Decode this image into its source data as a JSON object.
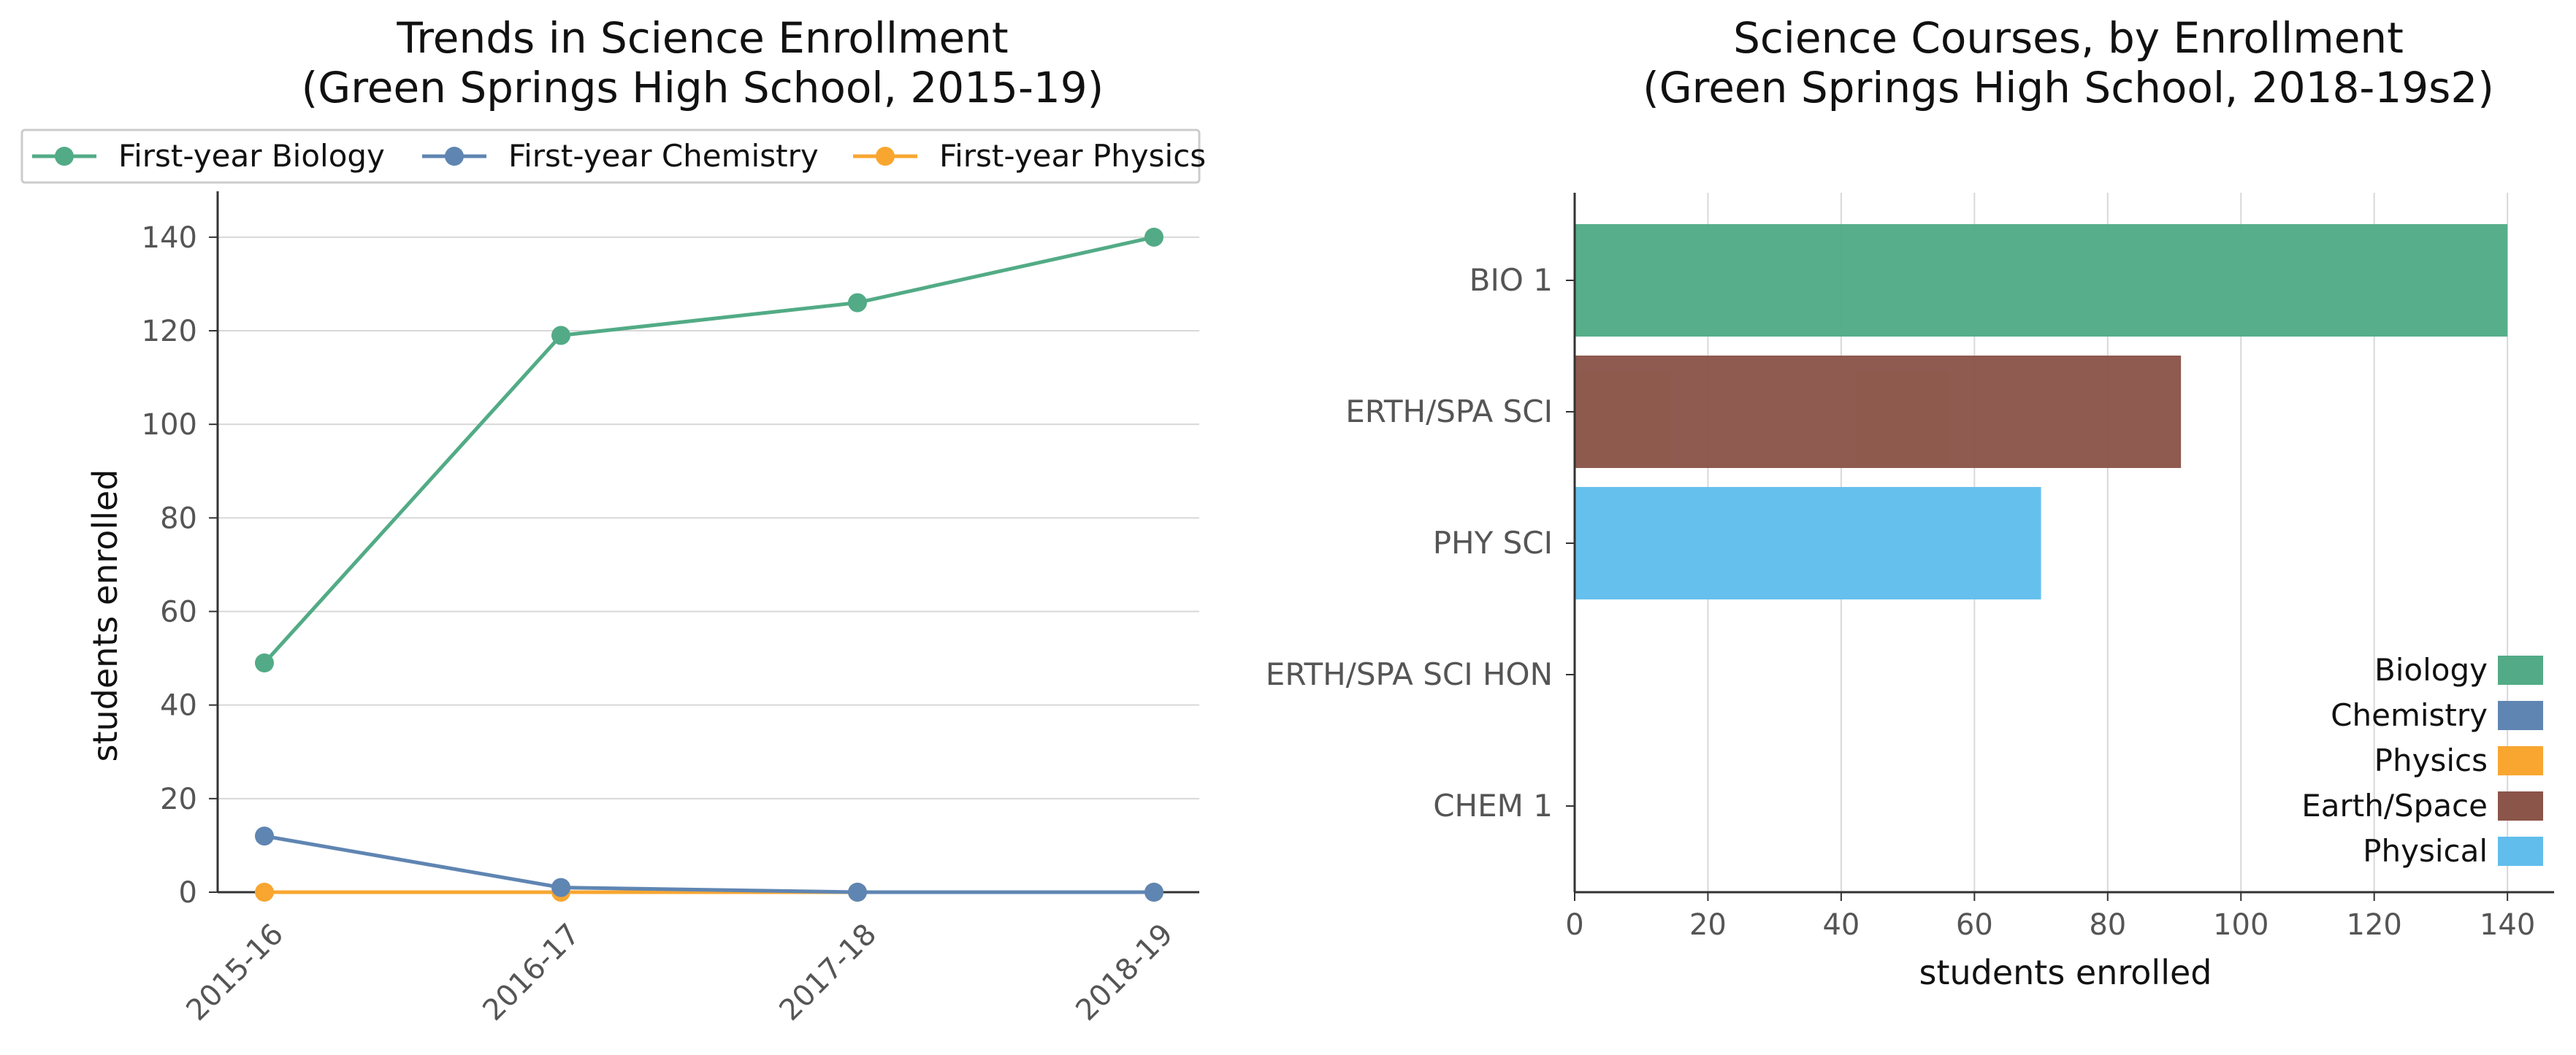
{
  "chart_data": [
    {
      "type": "line",
      "title": "Trends in Science Enrollment",
      "subtitle": "(Green Springs High School, 2015-19)",
      "xlabel": "",
      "ylabel": "students enrolled",
      "categories": [
        "2015-16",
        "2016-17",
        "2017-18",
        "2018-19"
      ],
      "ylim": [
        0,
        147
      ],
      "yticks": [
        0,
        20,
        40,
        60,
        80,
        100,
        120,
        140
      ],
      "grid": "horizontal",
      "legend_position": "top",
      "series": [
        {
          "name": "First-year Biology",
          "values": [
            49,
            119,
            126,
            140
          ],
          "color": "#52AB86"
        },
        {
          "name": "First-year Chemistry",
          "values": [
            12,
            1,
            0,
            0
          ],
          "color": "#5F85B2"
        },
        {
          "name": "First-year Physics",
          "values": [
            0,
            0,
            0,
            0
          ],
          "color": "#F8A630"
        }
      ]
    },
    {
      "type": "bar",
      "orientation": "horizontal",
      "title": "Science Courses, by Enrollment",
      "subtitle": "(Green Springs High School, 2018-19s2)",
      "xlabel": "students enrolled",
      "ylabel": "",
      "categories": [
        "BIO 1",
        "ERTH/SPA SCI",
        "PHY SCI",
        "ERTH/SPA SCI HON",
        "CHEM 1"
      ],
      "values": [
        140,
        91,
        70,
        0,
        0
      ],
      "bar_subjects": [
        "Biology",
        "Earth/Space",
        "Physical",
        "Earth/Space",
        "Chemistry"
      ],
      "xlim": [
        0,
        147
      ],
      "xticks": [
        0,
        20,
        40,
        60,
        80,
        100,
        120,
        140
      ],
      "grid": "vertical",
      "legend_position": "lower-right",
      "legend": [
        {
          "name": "Biology",
          "color": "#52AB86"
        },
        {
          "name": "Chemistry",
          "color": "#5F85B2"
        },
        {
          "name": "Physics",
          "color": "#F8A630"
        },
        {
          "name": "Earth/Space",
          "color": "#8B5549"
        },
        {
          "name": "Physical",
          "color": "#61BEEC"
        }
      ]
    }
  ]
}
